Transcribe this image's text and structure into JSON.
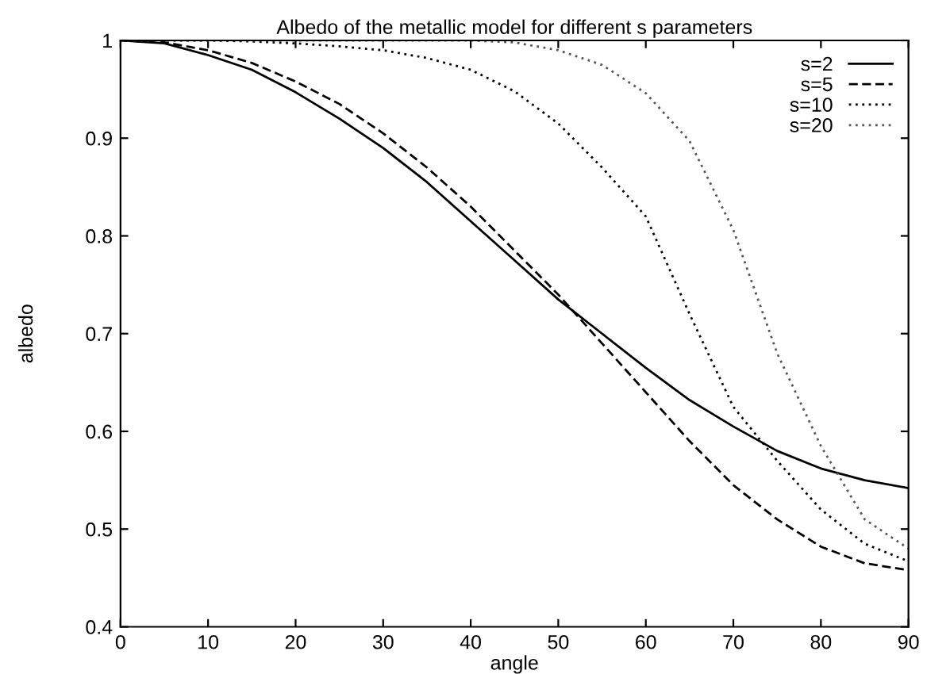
{
  "chart_data": {
    "type": "line",
    "title": "Albedo of the metallic model for different s parameters",
    "xlabel": "angle",
    "ylabel": "albedo",
    "x": [
      0,
      5,
      10,
      15,
      20,
      25,
      30,
      35,
      40,
      45,
      50,
      55,
      60,
      65,
      70,
      75,
      80,
      85,
      90
    ],
    "series": [
      {
        "name": "s=2",
        "color": "#000000",
        "line_style": "solid",
        "values": [
          1,
          0.997,
          0.985,
          0.97,
          0.947,
          0.92,
          0.89,
          0.855,
          0.815,
          0.775,
          0.735,
          0.7,
          0.665,
          0.632,
          0.605,
          0.58,
          0.562,
          0.55,
          0.542
        ]
      },
      {
        "name": "s=5",
        "color": "#000000",
        "line_style": "dashed",
        "values": [
          1,
          0.998,
          0.99,
          0.977,
          0.958,
          0.935,
          0.905,
          0.87,
          0.83,
          0.785,
          0.74,
          0.69,
          0.64,
          0.59,
          0.545,
          0.51,
          0.482,
          0.465,
          0.458
        ]
      },
      {
        "name": "s=10",
        "color": "#000000",
        "line_style": "dotted",
        "values": [
          1,
          1,
          1,
          0.999,
          0.997,
          0.994,
          0.99,
          0.982,
          0.97,
          0.948,
          0.915,
          0.87,
          0.82,
          0.72,
          0.625,
          0.57,
          0.52,
          0.485,
          0.467
        ]
      },
      {
        "name": "s=20",
        "color": "#555555",
        "line_style": "dotted",
        "values": [
          1,
          1,
          1,
          1,
          1,
          1,
          1,
          1,
          1,
          0.998,
          0.99,
          0.975,
          0.946,
          0.897,
          0.806,
          0.68,
          0.585,
          0.51,
          0.48
        ]
      }
    ],
    "xlim": [
      0,
      90
    ],
    "ylim": [
      0.4,
      1
    ],
    "xticks": [
      0,
      10,
      20,
      30,
      40,
      50,
      60,
      70,
      80,
      90
    ],
    "yticks": [
      0.4,
      0.5,
      0.6,
      0.7,
      0.8,
      0.9,
      1
    ],
    "grid": false,
    "legend": "top right"
  }
}
